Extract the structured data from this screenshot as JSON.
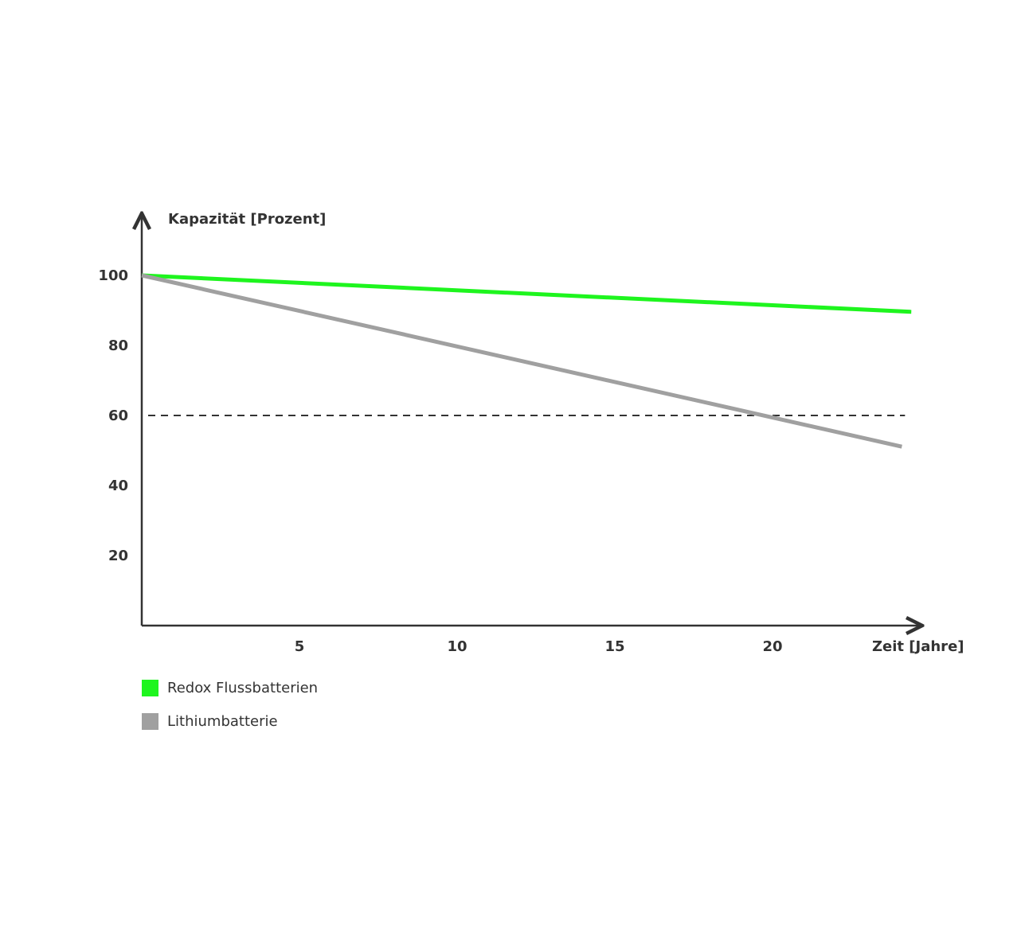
{
  "chart_data": {
    "type": "line",
    "xlabel": "Zeit [Jahre]",
    "ylabel": "Kapazität [Prozent]",
    "xlim": [
      0,
      24.4
    ],
    "ylim": [
      0,
      109
    ],
    "x_ticks": [
      "5",
      "10",
      "15",
      "20"
    ],
    "x_tick_values": [
      5,
      10,
      15,
      20
    ],
    "y_ticks": [
      "20",
      "40",
      "60",
      "80",
      "100"
    ],
    "y_tick_values": [
      20,
      40,
      60,
      80,
      100
    ],
    "grid": false,
    "reference_line": {
      "y": 60,
      "style": "dashed",
      "color": "#333333"
    },
    "legend_position": "bottom-left",
    "series": [
      {
        "name": "Redox Flussbatterien",
        "color": "#1ef51e",
        "x": [
          0,
          24.4
        ],
        "y": [
          100,
          89.6
        ]
      },
      {
        "name": "Lithiumbatterie",
        "color": "#a0a0a0",
        "x": [
          0,
          24.1
        ],
        "y": [
          100,
          51.1
        ]
      }
    ]
  }
}
